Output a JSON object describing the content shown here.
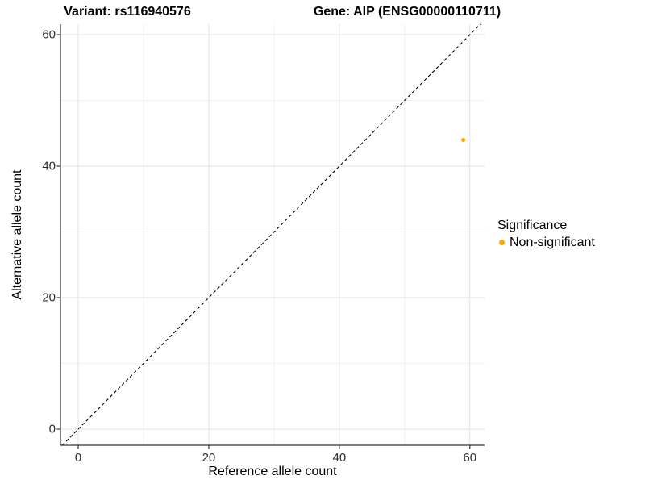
{
  "chart_data": {
    "type": "scatter",
    "title_left": "Variant: rs116940576",
    "title_right": "Gene: AIP (ENSG00000110711)",
    "xlabel": "Reference allele count",
    "ylabel": "Alternative allele count",
    "xlim": [
      -2.72,
      62.25
    ],
    "ylim": [
      -2.45,
      61.6
    ],
    "xticks": [
      0,
      20,
      40,
      60
    ],
    "yticks": [
      0,
      20,
      40,
      60
    ],
    "minor_xticks": [
      10,
      30,
      50
    ],
    "minor_yticks": [
      10,
      30,
      50
    ],
    "grid": true,
    "legend_position": "right",
    "colors": {
      "major_grid": "#e3e3e3",
      "minor_grid": "#f2f2f2",
      "axis_line": "#333333",
      "tick_text": "#2f2f2f",
      "identity_line": "#000000",
      "point_orange": "#FFA500"
    },
    "identity_line": {
      "equation": "y = x",
      "style": "dashed",
      "color": "#000000"
    },
    "series": [
      {
        "name": "Non-significant",
        "color": "#FFA500",
        "point_radius": 2.6,
        "points": [
          {
            "x": 59,
            "y": 44
          }
        ]
      }
    ],
    "legend": {
      "title": "Significance",
      "entries": [
        {
          "label": "Non-significant",
          "color": "#FFA500"
        }
      ]
    }
  }
}
